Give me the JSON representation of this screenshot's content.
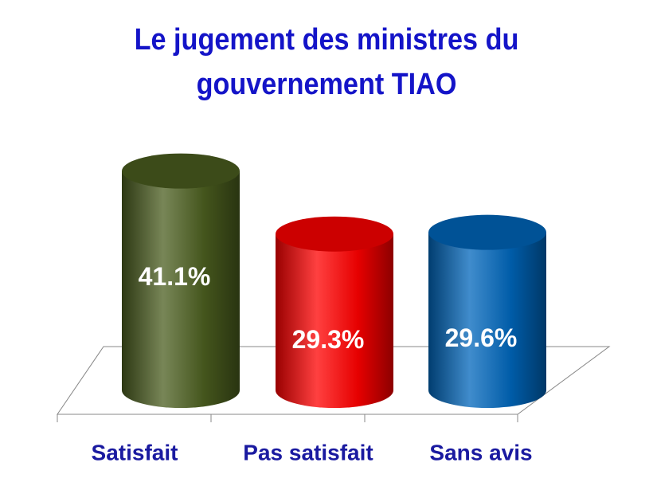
{
  "chart_data": {
    "type": "cylinder",
    "title": "Le jugement des ministres du gouvernement TIAO",
    "categories": [
      "Satisfait",
      "Pas satisfait",
      "Sans avis"
    ],
    "values": [
      41.1,
      29.3,
      29.6
    ],
    "value_labels": [
      "41.1%",
      "29.3%",
      "29.6%"
    ],
    "colors": [
      "#4b5e1f",
      "#ff0000",
      "#0066bb"
    ]
  }
}
